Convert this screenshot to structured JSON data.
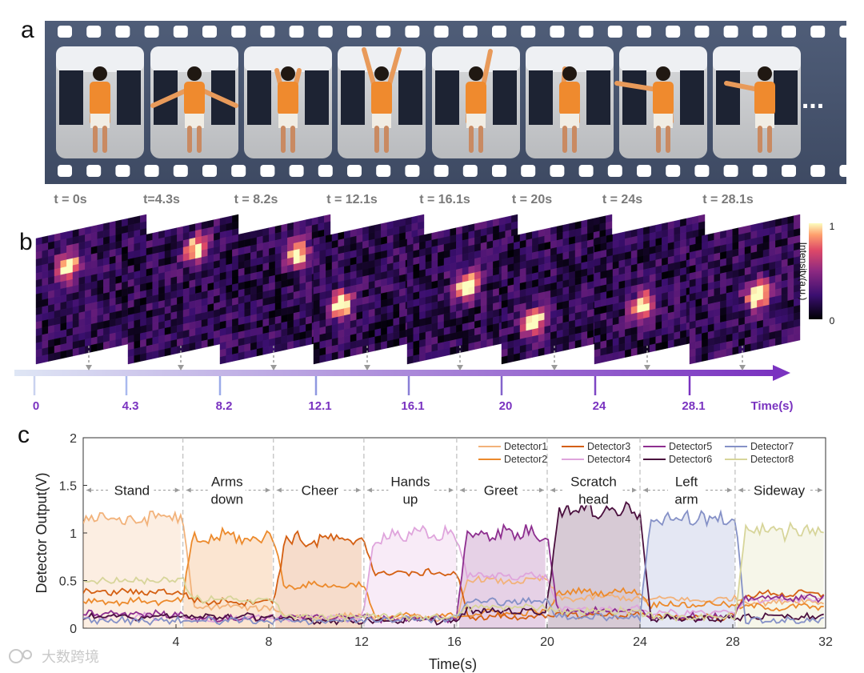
{
  "panels": {
    "a": "a",
    "b": "b",
    "c": "c"
  },
  "panel_a": {
    "time_labels": [
      "t = 0s",
      "t=4.3s",
      "t = 8.2s",
      "t = 12.1s",
      "t = 16.1s",
      "t = 20s",
      "t = 24s",
      "t = 28.1s"
    ],
    "ellipsis": "..."
  },
  "panel_b": {
    "colorbar_label": "Intensity(a.u.)",
    "colorbar_max": "1",
    "colorbar_min": "0",
    "timeline_ticks": [
      "0",
      "4.3",
      "8.2",
      "12.1",
      "16.1",
      "20",
      "24",
      "28.1"
    ],
    "timeline_title": "Time(s)",
    "colors": {
      "timeline_start": "#dfe6f5",
      "timeline_end": "#7a33c0"
    }
  },
  "chart_data": {
    "type": "line",
    "xlabel": "Time(s)",
    "ylabel": "Detector Output(V)",
    "xlim": [
      0,
      32
    ],
    "ylim": [
      0,
      2
    ],
    "x_ticks": [
      "4",
      "8",
      "12",
      "16",
      "20",
      "24",
      "28",
      "32"
    ],
    "y_ticks": [
      "0",
      "0.5",
      "1",
      "1.5",
      "2"
    ],
    "segment_boundaries": [
      4.3,
      8.2,
      12.1,
      16.1,
      20,
      24,
      28.1
    ],
    "activities": [
      {
        "label": [
          "Stand"
        ],
        "x": 2.1
      },
      {
        "label": [
          "Arms",
          "down"
        ],
        "x": 6.2
      },
      {
        "label": [
          "Cheer"
        ],
        "x": 10.2
      },
      {
        "label": [
          "Hands",
          "up"
        ],
        "x": 14.1
      },
      {
        "label": [
          "Greet"
        ],
        "x": 18.0
      },
      {
        "label": [
          "Scratch",
          "head"
        ],
        "x": 22.0
      },
      {
        "label": [
          "Left",
          "arm"
        ],
        "x": 26.0
      },
      {
        "label": [
          "Sideway"
        ],
        "x": 30.0
      }
    ],
    "series": [
      {
        "name": "Detector1",
        "color": "#f2b27a",
        "levels": [
          1.15,
          0.22,
          0.12,
          0.1,
          0.5,
          0.32,
          0.3,
          0.28
        ],
        "active": 0
      },
      {
        "name": "Detector2",
        "color": "#ec8a2c",
        "levels": [
          0.28,
          0.95,
          0.45,
          0.12,
          0.16,
          0.38,
          0.25,
          0.22
        ],
        "active": 1
      },
      {
        "name": "Detector3",
        "color": "#d45f12",
        "levels": [
          0.38,
          0.28,
          0.92,
          0.58,
          0.12,
          0.14,
          0.12,
          0.36
        ],
        "active": 2
      },
      {
        "name": "Detector4",
        "color": "#dfa4dc",
        "levels": [
          0.12,
          0.1,
          0.1,
          0.98,
          0.55,
          0.2,
          0.16,
          0.3
        ],
        "active": 3
      },
      {
        "name": "Detector5",
        "color": "#8d2e8f",
        "levels": [
          0.15,
          0.1,
          0.12,
          0.1,
          1.0,
          0.18,
          0.12,
          0.32
        ],
        "active": 4
      },
      {
        "name": "Detector6",
        "color": "#4a0f3e",
        "levels": [
          0.12,
          0.12,
          0.08,
          0.08,
          0.18,
          1.24,
          0.1,
          0.12
        ],
        "active": 5
      },
      {
        "name": "Detector7",
        "color": "#8591c7",
        "levels": [
          0.08,
          0.08,
          0.08,
          0.1,
          0.28,
          0.12,
          1.15,
          0.08
        ],
        "active": 6
      },
      {
        "name": "Detector8",
        "color": "#d7d59a",
        "levels": [
          0.5,
          0.3,
          0.12,
          0.12,
          0.22,
          0.18,
          0.12,
          1.02
        ],
        "active": 7
      }
    ]
  },
  "watermark": "大数跨境"
}
